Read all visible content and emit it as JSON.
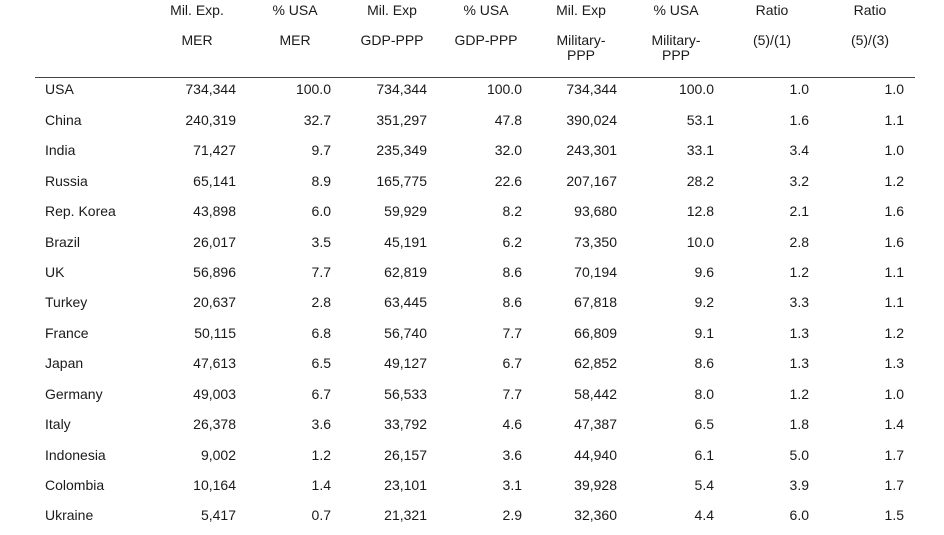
{
  "headers": [
    {
      "line1": "Mil. Exp.",
      "line2": "MER"
    },
    {
      "line1": "% USA",
      "line2": "MER"
    },
    {
      "line1": "Mil. Exp",
      "line2": "GDP-PPP"
    },
    {
      "line1": "% USA",
      "line2": "GDP-PPP"
    },
    {
      "line1": "Mil. Exp",
      "line2": "Military-\nPPP"
    },
    {
      "line1": "% USA",
      "line2": "Military-\nPPP"
    },
    {
      "line1": "Ratio",
      "line2": "(5)/(1)"
    },
    {
      "line1": "Ratio",
      "line2": "(5)/(3)"
    }
  ],
  "rows": [
    {
      "country": "USA",
      "values": [
        "734,344",
        "100.0",
        "734,344",
        "100.0",
        "734,344",
        "100.0",
        "1.0",
        "1.0"
      ]
    },
    {
      "country": "China",
      "values": [
        "240,319",
        "32.7",
        "351,297",
        "47.8",
        "390,024",
        "53.1",
        "1.6",
        "1.1"
      ]
    },
    {
      "country": "India",
      "values": [
        "71,427",
        "9.7",
        "235,349",
        "32.0",
        "243,301",
        "33.1",
        "3.4",
        "1.0"
      ]
    },
    {
      "country": "Russia",
      "values": [
        "65,141",
        "8.9",
        "165,775",
        "22.6",
        "207,167",
        "28.2",
        "3.2",
        "1.2"
      ]
    },
    {
      "country": "Rep. Korea",
      "values": [
        "43,898",
        "6.0",
        "59,929",
        "8.2",
        "93,680",
        "12.8",
        "2.1",
        "1.6"
      ]
    },
    {
      "country": "Brazil",
      "values": [
        "26,017",
        "3.5",
        "45,191",
        "6.2",
        "73,350",
        "10.0",
        "2.8",
        "1.6"
      ]
    },
    {
      "country": "UK",
      "values": [
        "56,896",
        "7.7",
        "62,819",
        "8.6",
        "70,194",
        "9.6",
        "1.2",
        "1.1"
      ]
    },
    {
      "country": "Turkey",
      "values": [
        "20,637",
        "2.8",
        "63,445",
        "8.6",
        "67,818",
        "9.2",
        "3.3",
        "1.1"
      ]
    },
    {
      "country": "France",
      "values": [
        "50,115",
        "6.8",
        "56,740",
        "7.7",
        "66,809",
        "9.1",
        "1.3",
        "1.2"
      ]
    },
    {
      "country": "Japan",
      "values": [
        "47,613",
        "6.5",
        "49,127",
        "6.7",
        "62,852",
        "8.6",
        "1.3",
        "1.3"
      ]
    },
    {
      "country": "Germany",
      "values": [
        "49,003",
        "6.7",
        "56,533",
        "7.7",
        "58,442",
        "8.0",
        "1.2",
        "1.0"
      ]
    },
    {
      "country": "Italy",
      "values": [
        "26,378",
        "3.6",
        "33,792",
        "4.6",
        "47,387",
        "6.5",
        "1.8",
        "1.4"
      ]
    },
    {
      "country": "Indonesia",
      "values": [
        "9,002",
        "1.2",
        "26,157",
        "3.6",
        "44,940",
        "6.1",
        "5.0",
        "1.7"
      ]
    },
    {
      "country": "Colombia",
      "values": [
        "10,164",
        "1.4",
        "23,101",
        "3.1",
        "39,928",
        "5.4",
        "3.9",
        "1.7"
      ]
    },
    {
      "country": "Ukraine",
      "values": [
        "5,417",
        "0.7",
        "21,321",
        "2.9",
        "32,360",
        "4.4",
        "6.0",
        "1.5"
      ]
    }
  ]
}
